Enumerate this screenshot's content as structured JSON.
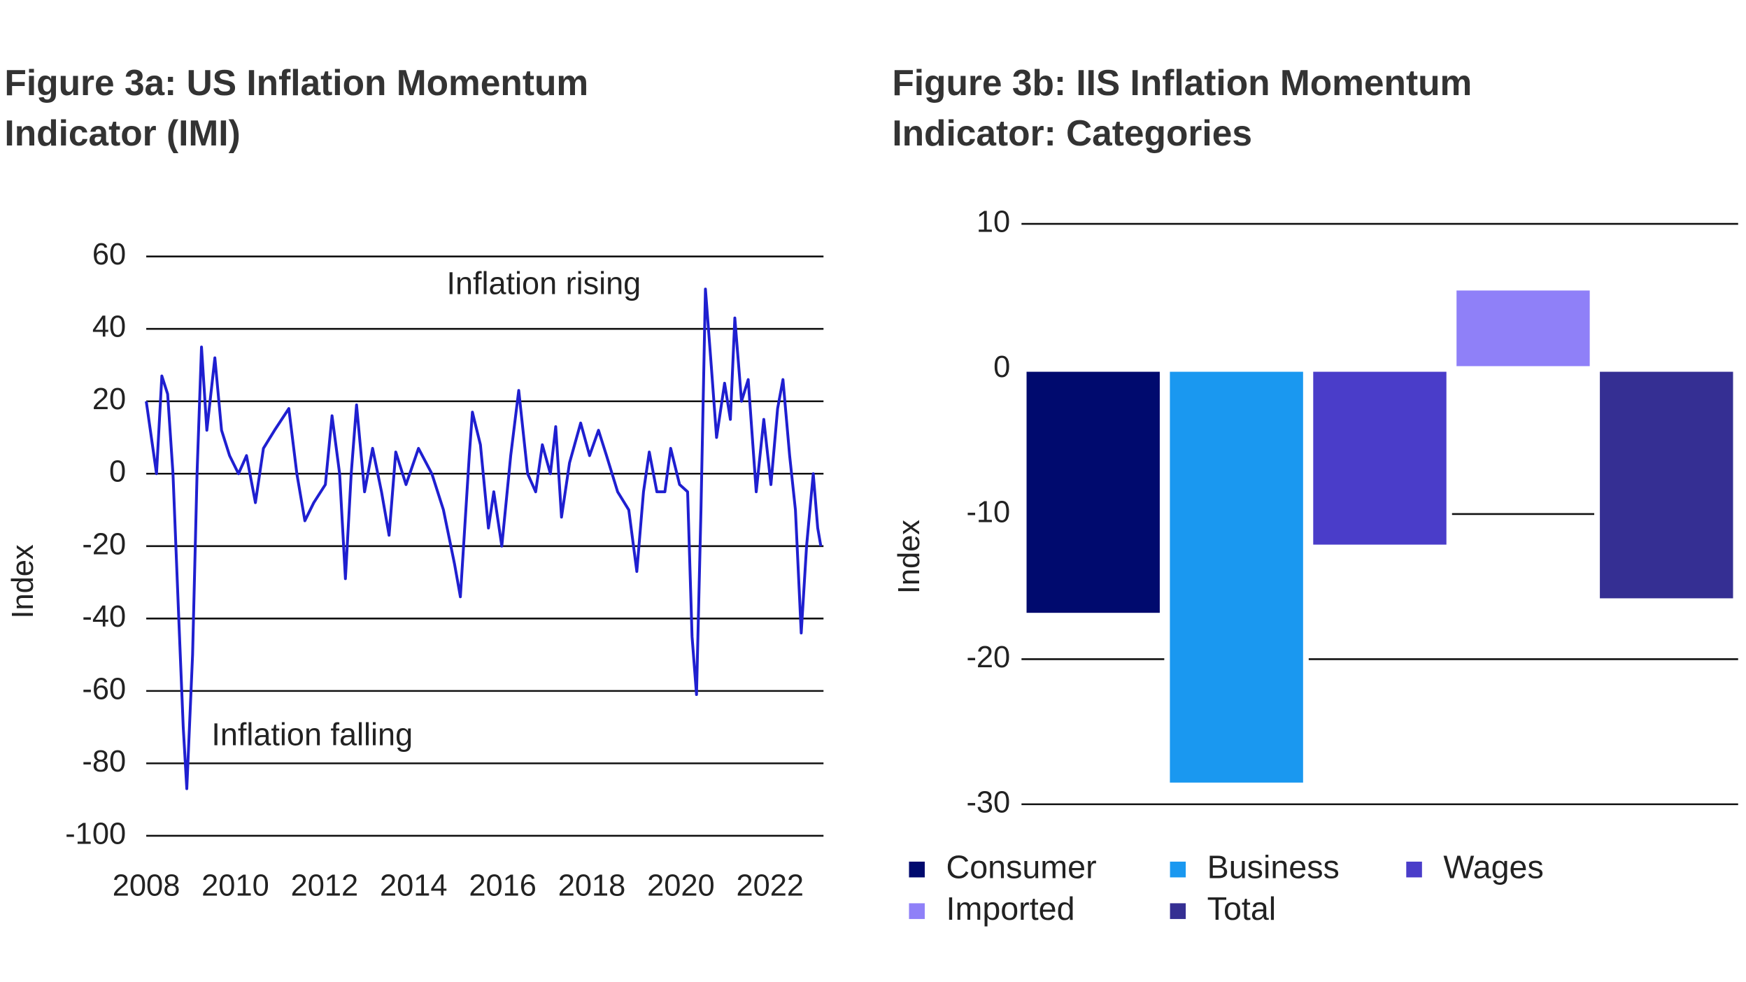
{
  "chart_data": [
    {
      "type": "line",
      "title": [
        "Figure 3a: US Inflation Momentum",
        "Indicator (IMI)"
      ],
      "ylabel": "Index",
      "annotations": [
        "Inflation rising",
        "Inflation falling"
      ],
      "xlim": [
        2008,
        2023.2
      ],
      "xticks": [
        2008,
        2010,
        2012,
        2014,
        2016,
        2018,
        2020,
        2022
      ],
      "ylim": [
        -100,
        60
      ],
      "yticks": [
        -100,
        -80,
        -60,
        -40,
        -20,
        0,
        20,
        40,
        60
      ],
      "grid": true,
      "series": [
        {
          "name": "IMI",
          "color": "#1f1fd0",
          "x": [
            2008.0,
            2008.23,
            2008.35,
            2008.48,
            2008.6,
            2008.73,
            2008.83,
            2008.91,
            2009.04,
            2009.14,
            2009.24,
            2009.36,
            2009.54,
            2009.69,
            2009.87,
            2010.07,
            2010.25,
            2010.45,
            2010.63,
            2010.88,
            2011.2,
            2011.38,
            2011.56,
            2011.76,
            2012.02,
            2012.17,
            2012.34,
            2012.47,
            2012.6,
            2012.72,
            2012.9,
            2013.08,
            2013.28,
            2013.45,
            2013.6,
            2013.83,
            2014.11,
            2014.41,
            2014.67,
            2014.92,
            2015.05,
            2015.25,
            2015.32,
            2015.5,
            2015.68,
            2015.8,
            2015.98,
            2016.18,
            2016.36,
            2016.56,
            2016.74,
            2016.89,
            2017.07,
            2017.19,
            2017.32,
            2017.5,
            2017.75,
            2017.95,
            2018.15,
            2018.33,
            2018.58,
            2018.83,
            2019.01,
            2019.16,
            2019.29,
            2019.46,
            2019.64,
            2019.77,
            2019.97,
            2020.15,
            2020.25,
            2020.35,
            2020.45,
            2020.55,
            2020.68,
            2020.8,
            2020.98,
            2021.11,
            2021.21,
            2021.36,
            2021.51,
            2021.69,
            2021.86,
            2022.02,
            2022.17,
            2022.29,
            2022.44,
            2022.57,
            2022.7,
            2022.82,
            2022.97,
            2023.07,
            2023.14
          ],
          "values": [
            20,
            0,
            27,
            22,
            0,
            -40,
            -70,
            -87,
            -50,
            0,
            35,
            12,
            32,
            12,
            5,
            0,
            5,
            -8,
            7,
            12,
            18,
            0,
            -13,
            -8,
            -3,
            16,
            0,
            -29,
            0,
            19,
            -5,
            7,
            -5,
            -17,
            6,
            -3,
            7,
            0,
            -10,
            -25,
            -34,
            5,
            17,
            8,
            -15,
            -5,
            -20,
            5,
            23,
            0,
            -5,
            8,
            0,
            13,
            -12,
            3,
            14,
            5,
            12,
            5,
            -5,
            -10,
            -27,
            -5,
            6,
            -5,
            -5,
            7,
            -3,
            -5,
            -45,
            -61,
            -10,
            51,
            30,
            10,
            25,
            15,
            43,
            20,
            26,
            -5,
            15,
            -3,
            18,
            26,
            5,
            -10,
            -44,
            -20,
            0,
            -15,
            -20
          ]
        }
      ]
    },
    {
      "type": "bar",
      "title": [
        "Figure 3b: IIS Inflation Momentum",
        "Indicator: Categories"
      ],
      "ylabel": "Index",
      "categories": [
        "Consumer",
        "Business",
        "Wages",
        "Imported",
        "Total"
      ],
      "values": [
        -17,
        -28.7,
        -12.3,
        5.6,
        -16
      ],
      "colors": [
        "#000a6e",
        "#1a98f0",
        "#4a3dc9",
        "#8f80f8",
        "#352f93"
      ],
      "ylim": [
        -30,
        10
      ],
      "yticks": [
        -30,
        -20,
        -10,
        0,
        10
      ],
      "grid": true,
      "legend": "bottom"
    }
  ]
}
